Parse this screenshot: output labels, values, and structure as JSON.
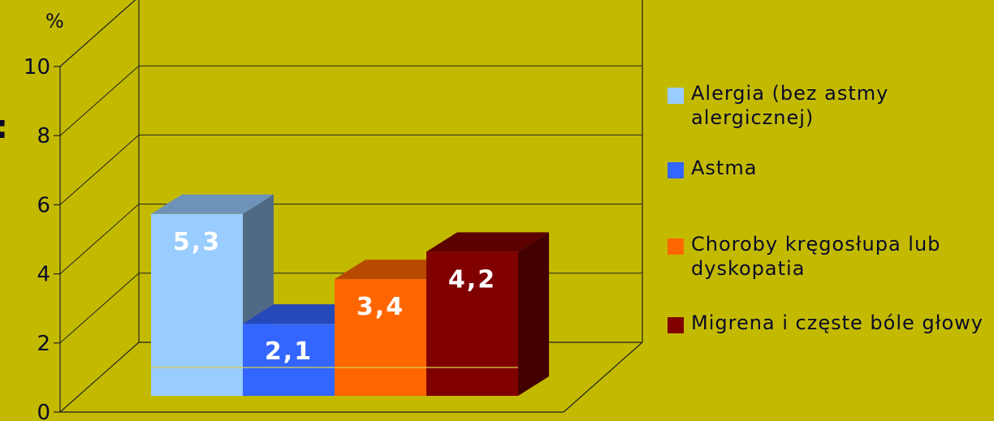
{
  "chart_data": {
    "type": "bar",
    "unit_label": "%",
    "yticks": [
      "0",
      "2",
      "4",
      "6",
      "8",
      "10"
    ],
    "ylim": [
      0,
      10
    ],
    "grid": true,
    "legend_position": "right",
    "series": [
      {
        "name": "Alergia (bez astmy alergicznej)",
        "value": 5.3,
        "label": "5,3",
        "color": "#99CCFF"
      },
      {
        "name": "Astma",
        "value": 2.1,
        "label": "2,1",
        "color": "#3366FF"
      },
      {
        "name": "Choroby kręgosłupa lub dyskopatia",
        "value": 3.4,
        "label": "3,4",
        "color": "#FF6600"
      },
      {
        "name": "Migrena i częste bóle głowy",
        "value": 4.2,
        "label": "4,2",
        "color": "#800000"
      }
    ]
  },
  "edge_mark": ":"
}
